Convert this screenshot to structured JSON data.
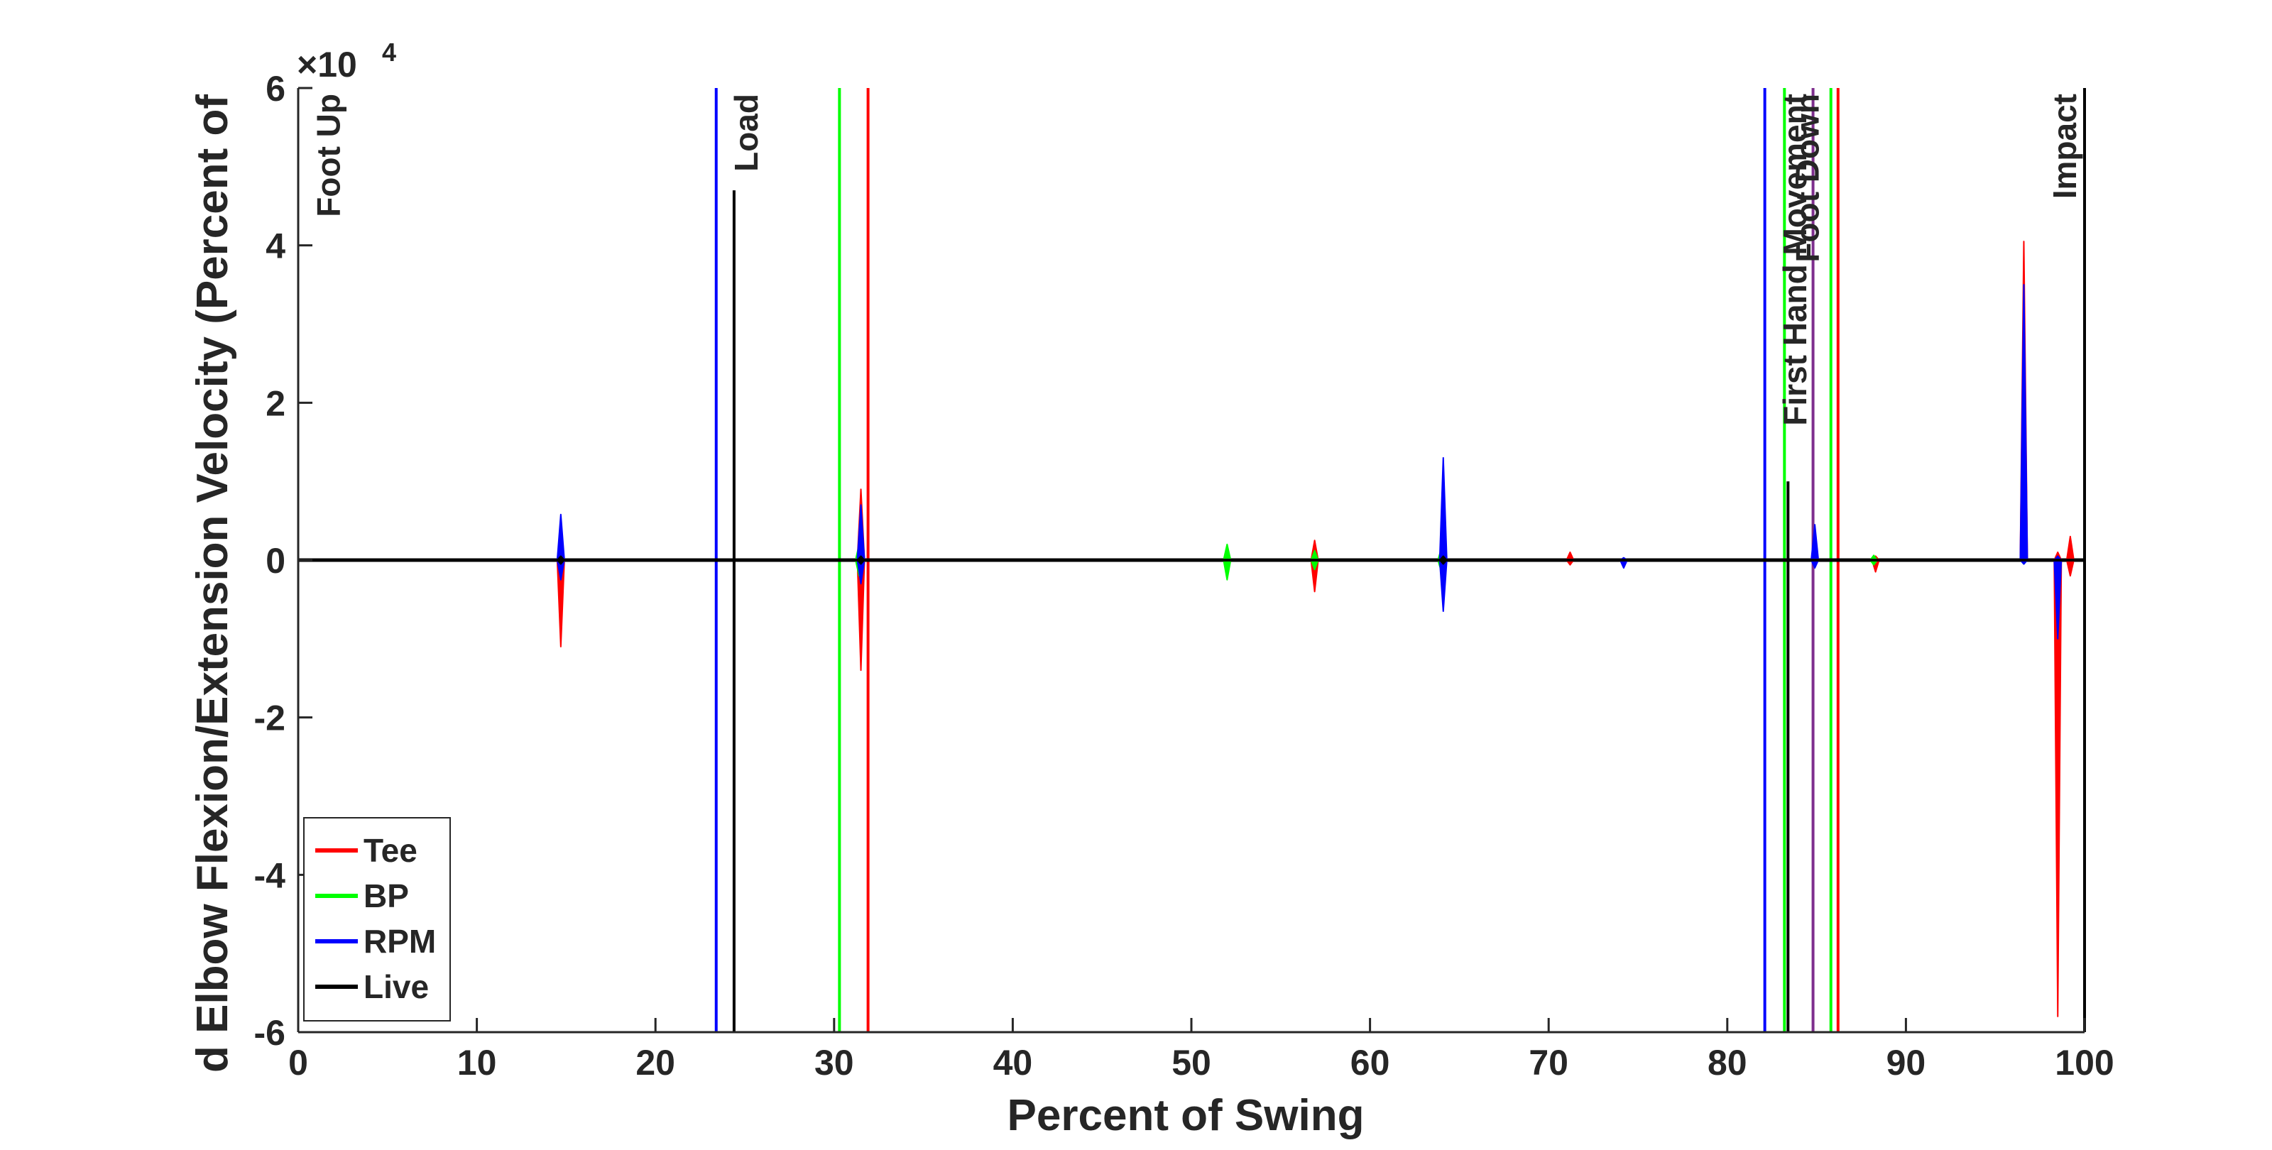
{
  "chart_data": {
    "type": "line",
    "xlabel": "Percent of Swing",
    "ylabel": "d Elbow Flexion/Extension Velocity (Percent of",
    "xlim": [
      0,
      100
    ],
    "ylim": [
      -60000,
      60000
    ],
    "x_ticks": [
      0,
      10,
      20,
      30,
      40,
      50,
      60,
      70,
      80,
      90,
      100
    ],
    "y_ticks": [
      -6,
      -4,
      -2,
      0,
      2,
      4,
      6
    ],
    "y_exponent": "×10",
    "y_exponent_power": "4",
    "grid": false,
    "legend": {
      "placement": "bottom-left",
      "entries": [
        {
          "name": "Tee",
          "color": "#ff0000"
        },
        {
          "name": "BP",
          "color": "#00ff00"
        },
        {
          "name": "RPM",
          "color": "#0000ff"
        },
        {
          "name": "Live",
          "color": "#000000"
        }
      ]
    },
    "series": [
      {
        "name": "Tee",
        "color": "#ff0000",
        "spikes": [
          {
            "x": 14.7,
            "pos": 2000,
            "neg": -11000
          },
          {
            "x": 31.5,
            "pos": 9000,
            "neg": -14000
          },
          {
            "x": 56.9,
            "pos": 2500,
            "neg": -4000
          },
          {
            "x": 64.1,
            "pos": 1000,
            "neg": -1000
          },
          {
            "x": 71.2,
            "pos": 1000,
            "neg": -600
          },
          {
            "x": 88.3,
            "pos": 500,
            "neg": -1500
          },
          {
            "x": 96.6,
            "pos": 40500,
            "neg": -300
          },
          {
            "x": 98.5,
            "pos": 1000,
            "neg": -58000
          },
          {
            "x": 99.2,
            "pos": 3000,
            "neg": -2000
          }
        ]
      },
      {
        "name": "BP",
        "color": "#00ff00",
        "spikes": [
          {
            "x": 14.7,
            "pos": 1500,
            "neg": -1500
          },
          {
            "x": 31.4,
            "pos": 2000,
            "neg": -2000
          },
          {
            "x": 52.0,
            "pos": 2000,
            "neg": -2500
          },
          {
            "x": 56.9,
            "pos": 1200,
            "neg": -1200
          },
          {
            "x": 64.0,
            "pos": 1500,
            "neg": -1500
          },
          {
            "x": 88.2,
            "pos": 600,
            "neg": -600
          },
          {
            "x": 96.6,
            "pos": 2000,
            "neg": -500
          }
        ]
      },
      {
        "name": "RPM",
        "color": "#0000ff",
        "spikes": [
          {
            "x": 14.7,
            "pos": 5800,
            "neg": -2500
          },
          {
            "x": 31.5,
            "pos": 7000,
            "neg": -3000
          },
          {
            "x": 64.1,
            "pos": 13000,
            "neg": -6500
          },
          {
            "x": 74.2,
            "pos": 300,
            "neg": -1000
          },
          {
            "x": 84.9,
            "pos": 4500,
            "neg": -1000
          },
          {
            "x": 96.6,
            "pos": 35000,
            "neg": -500
          },
          {
            "x": 98.5,
            "pos": 500,
            "neg": -10000
          }
        ]
      },
      {
        "name": "Live",
        "color": "#000000",
        "spikes": [
          {
            "x": 14.7,
            "pos": 500,
            "neg": -500
          },
          {
            "x": 31.5,
            "pos": 500,
            "neg": -500
          },
          {
            "x": 64.1,
            "pos": 500,
            "neg": -500
          }
        ]
      }
    ],
    "event_lines": [
      {
        "x": 23.4,
        "color": "#0000ff",
        "top": 60000
      },
      {
        "x": 24.4,
        "color": "#000000",
        "top": 47000
      },
      {
        "x": 30.3,
        "color": "#00ff00",
        "top": 60000
      },
      {
        "x": 31.9,
        "color": "#ff0000",
        "top": 60000
      },
      {
        "x": 82.1,
        "color": "#0000ff",
        "top": 60000
      },
      {
        "x": 83.2,
        "color": "#00ff00",
        "top": 60000
      },
      {
        "x": 83.4,
        "color": "#000000",
        "top": 10000
      },
      {
        "x": 84.8,
        "color": "#7e2f8e",
        "top": 60000
      },
      {
        "x": 85.8,
        "color": "#00ff00",
        "top": 60000
      },
      {
        "x": 86.2,
        "color": "#ff0000",
        "top": 60000
      },
      {
        "x": 100,
        "color": "#000000",
        "top": 60000
      }
    ],
    "event_labels": [
      {
        "text": "Foot Up",
        "x": 1.6,
        "y": 60000
      },
      {
        "text": "Load",
        "x": 25.0,
        "y": 60000
      },
      {
        "text": "First Hand Movement",
        "x": 83.7,
        "y": 60000
      },
      {
        "text": "Foot Down",
        "x": 84.4,
        "y": 60000
      },
      {
        "text": "Impact",
        "x": 98.8,
        "y": 60000
      }
    ]
  }
}
